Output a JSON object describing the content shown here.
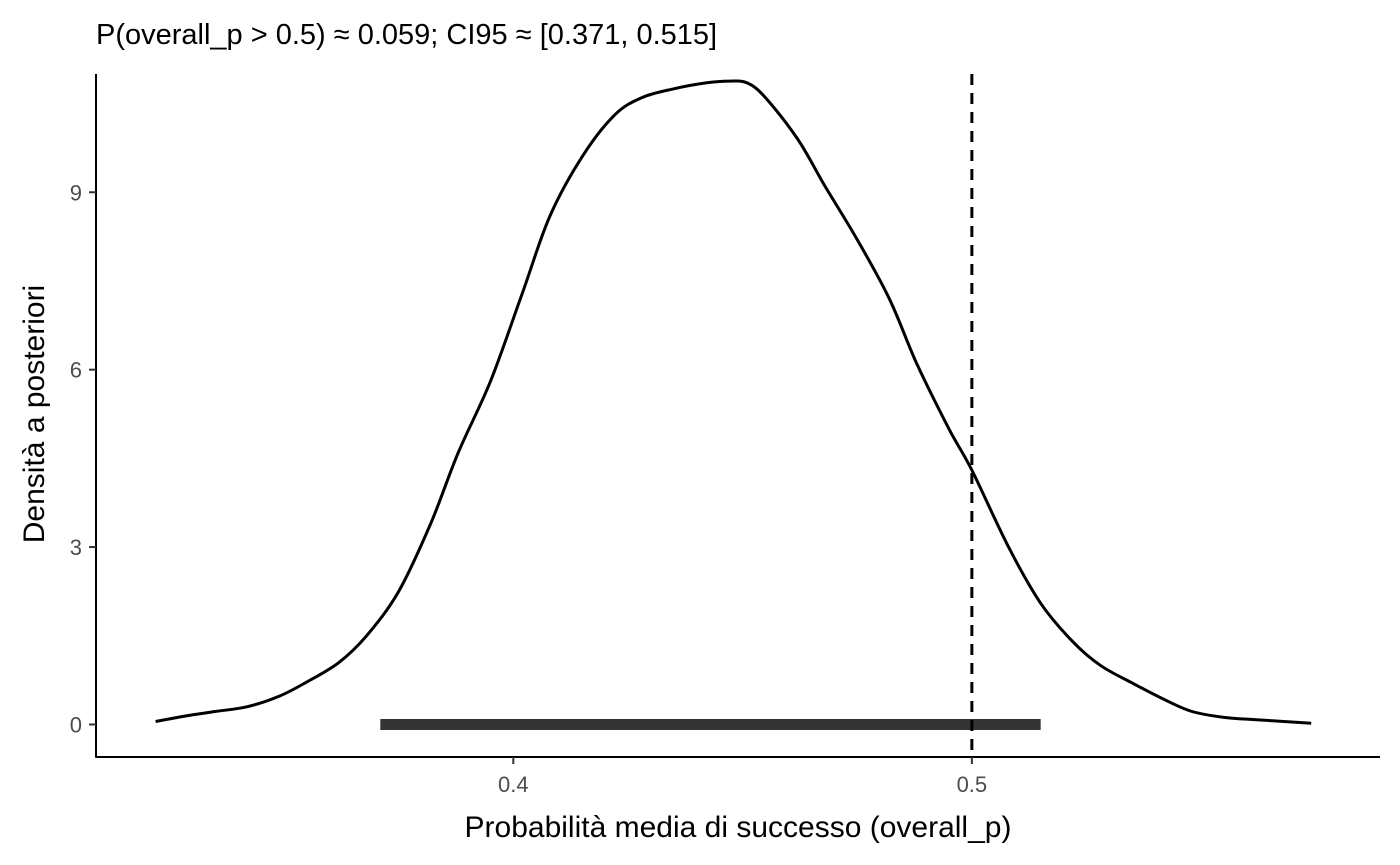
{
  "chart_data": {
    "type": "area",
    "title": "P(overall_p > 0.5) ≈ 0.059; CI95 ≈ [0.371, 0.515]",
    "xlabel": "Probabilità media di successo (overall_p)",
    "ylabel": "Densità a posteriori",
    "xlim": [
      0.309,
      0.589
    ],
    "ylim": [
      -0.55,
      11.0
    ],
    "x_ticks": [
      0.4,
      0.5
    ],
    "x_tick_labels": [
      "0.4",
      "0.5"
    ],
    "y_ticks": [
      0,
      3,
      6,
      9
    ],
    "y_tick_labels": [
      "0",
      "3",
      "6",
      "9"
    ],
    "grid": false,
    "series": [
      {
        "kind": "density",
        "color": "#000000",
        "x": [
          0.322,
          0.329,
          0.335,
          0.342,
          0.349,
          0.355,
          0.362,
          0.368,
          0.375,
          0.382,
          0.388,
          0.395,
          0.402,
          0.408,
          0.415,
          0.422,
          0.428,
          0.435,
          0.442,
          0.447,
          0.451,
          0.455,
          0.462,
          0.468,
          0.475,
          0.482,
          0.488,
          0.495,
          0.5,
          0.508,
          0.515,
          0.522,
          0.528,
          0.535,
          0.542,
          0.548,
          0.555,
          0.562,
          0.568,
          0.574
        ],
        "y": [
          0.05,
          0.15,
          0.22,
          0.3,
          0.48,
          0.72,
          1.05,
          1.5,
          2.25,
          3.4,
          4.6,
          5.8,
          7.3,
          8.6,
          9.6,
          10.3,
          10.6,
          10.75,
          10.85,
          10.88,
          10.85,
          10.6,
          9.9,
          9.1,
          8.2,
          7.2,
          6.1,
          5.0,
          4.3,
          3.0,
          2.05,
          1.4,
          1.0,
          0.7,
          0.42,
          0.22,
          0.12,
          0.08,
          0.05,
          0.02
        ]
      },
      {
        "kind": "interval",
        "label": "CI95",
        "color": "#333333",
        "x_start": 0.371,
        "x_end": 0.515,
        "y": 0
      },
      {
        "kind": "reference_line",
        "color": "#000000",
        "style": "dashed",
        "x": 0.5
      }
    ]
  }
}
